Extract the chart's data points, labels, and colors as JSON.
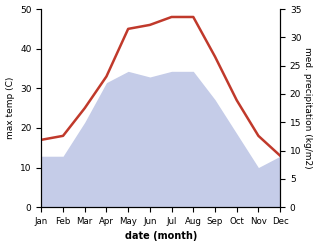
{
  "months": [
    "Jan",
    "Feb",
    "Mar",
    "Apr",
    "May",
    "Jun",
    "Jul",
    "Aug",
    "Sep",
    "Oct",
    "Nov",
    "Dec"
  ],
  "temperature": [
    17,
    18,
    25,
    33,
    45,
    46,
    48,
    48,
    38,
    27,
    18,
    13
  ],
  "precipitation": [
    9,
    9,
    15,
    22,
    24,
    23,
    24,
    24,
    19,
    13,
    7,
    9
  ],
  "temp_color": "#c0392b",
  "precip_fill_color": "#c5cce8",
  "bg_color": "#ffffff",
  "ylabel_left": "max temp (C)",
  "ylabel_right": "med. precipitation (kg/m2)",
  "xlabel": "date (month)",
  "ylim_left": [
    0,
    50
  ],
  "ylim_right": [
    0,
    35
  ],
  "yticks_left": [
    0,
    10,
    20,
    30,
    40,
    50
  ],
  "yticks_right": [
    0,
    5,
    10,
    15,
    20,
    25,
    30,
    35
  ]
}
